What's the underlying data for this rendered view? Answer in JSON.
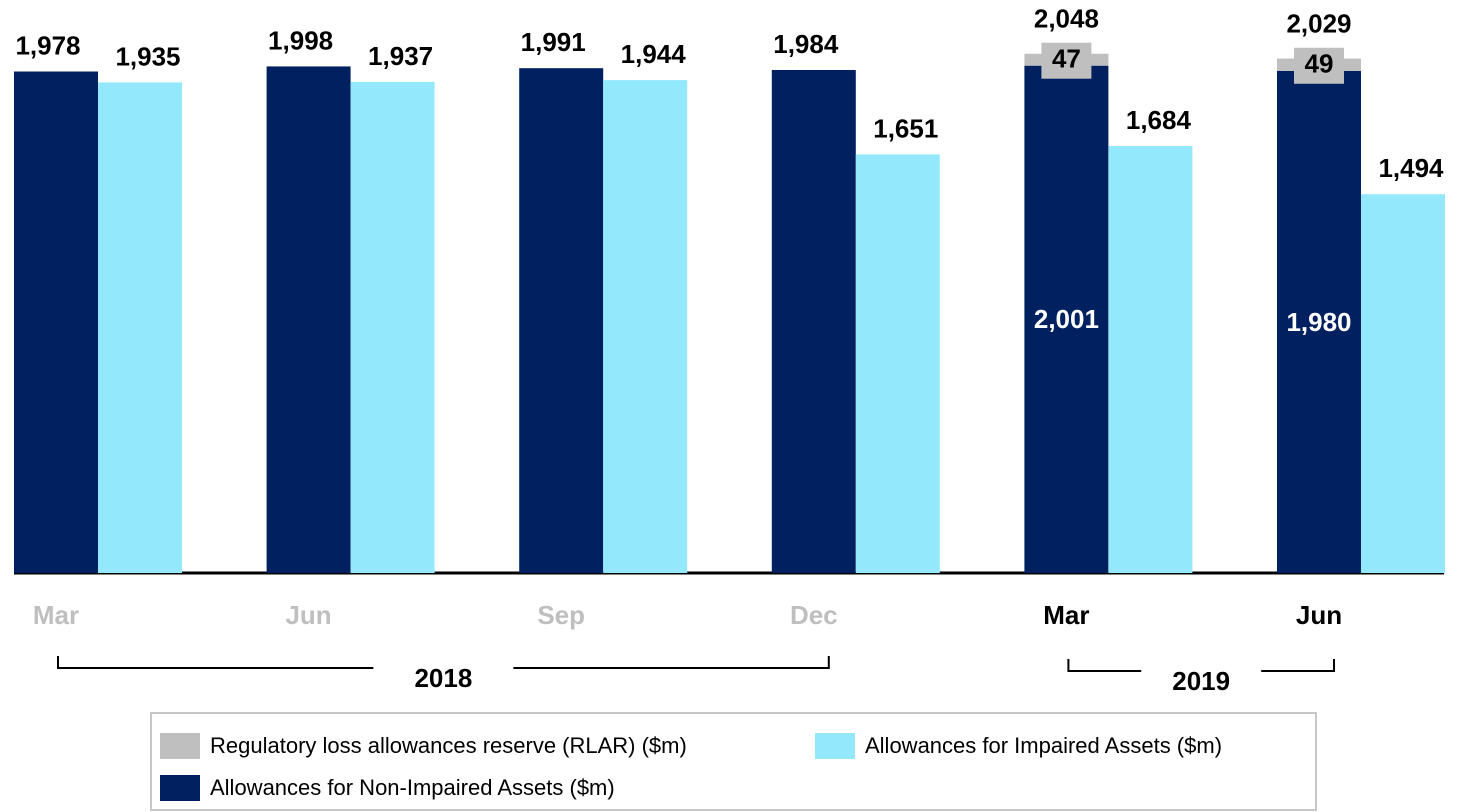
{
  "chart_data": {
    "type": "bar",
    "categories": [
      "Mar",
      "Jun",
      "Sep",
      "Dec",
      "Mar",
      "Jun"
    ],
    "x_groups": [
      {
        "label": "2018",
        "count": 4,
        "color": "#bfbfbf"
      },
      {
        "label": "2019",
        "count": 2,
        "color": "#000000"
      }
    ],
    "series": [
      {
        "name": "Allowances for Non-Impaired Assets ($m)",
        "color": "#002060",
        "stack": "a",
        "values": [
          1978,
          1998,
          1991,
          1984,
          2001,
          1980
        ],
        "value_labels": [
          "1,978",
          "1,998",
          "1,991",
          "1,984",
          "2,001",
          "1,980"
        ]
      },
      {
        "name": "Regulatory loss allowances reserve (RLAR) ($m)",
        "color": "#bfbfbf",
        "stack": "a",
        "values": [
          null,
          null,
          null,
          null,
          47,
          49
        ]
      },
      {
        "name": "Allowances for Impaired Assets ($m)",
        "color": "#93e9fb",
        "stack": "b",
        "values": [
          1935,
          1937,
          1944,
          1651,
          1684,
          1494
        ],
        "value_labels": [
          "1,935",
          "1,937",
          "1,944",
          "1,651",
          "1,684",
          "1,494"
        ]
      }
    ],
    "totals": {
      "stack": "a",
      "values": [
        null,
        null,
        null,
        null,
        2048,
        2029
      ],
      "value_labels": [
        null,
        null,
        null,
        null,
        "2,048",
        "2,029"
      ]
    },
    "ylim": [
      0,
      2260
    ],
    "grid": false
  }
}
